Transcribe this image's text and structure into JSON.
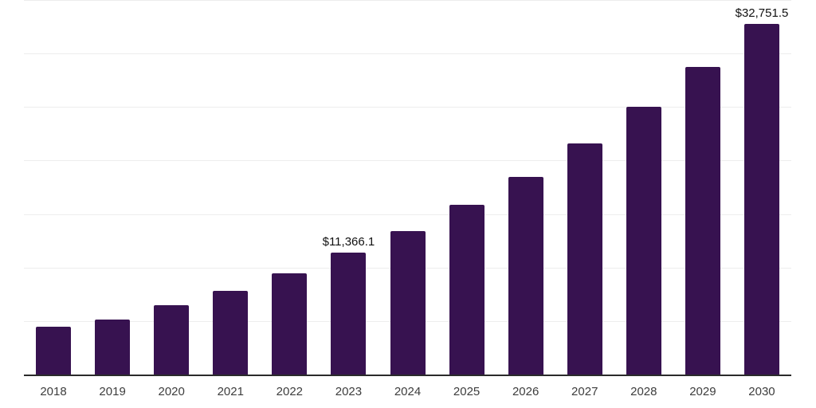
{
  "chart_data": {
    "type": "bar",
    "title": "",
    "xlabel": "",
    "ylabel": "",
    "categories": [
      "2018",
      "2019",
      "2020",
      "2021",
      "2022",
      "2023",
      "2024",
      "2025",
      "2026",
      "2027",
      "2028",
      "2029",
      "2030"
    ],
    "values": [
      4470,
      5150,
      6490,
      7830,
      9470,
      11366.1,
      13430,
      15890,
      18500,
      21630,
      24990,
      28710,
      32751.5
    ],
    "data_labels": [
      "",
      "",
      "",
      "",
      "",
      "$11,366.1",
      "",
      "",
      "",
      "",
      "",
      "",
      "$32,751.5"
    ],
    "ylim": [
      0,
      35000
    ],
    "gridline_interval": 5000,
    "grid": true,
    "legend": false,
    "colors": {
      "bar": "#371250",
      "axis_line": "#2b2b2b",
      "gridline": "#ededed",
      "data_label": "#111111",
      "tick_label": "#3d3d3d",
      "background": "#ffffff"
    }
  }
}
